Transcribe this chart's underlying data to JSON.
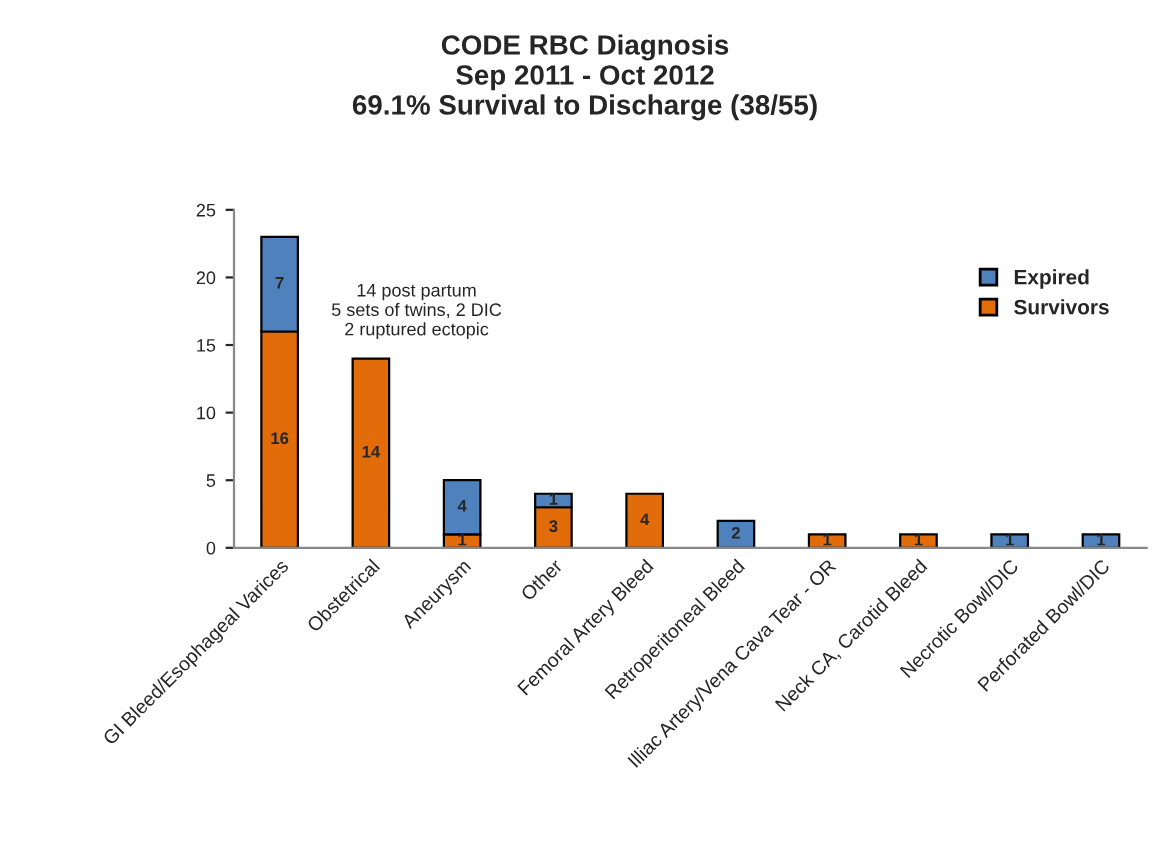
{
  "chart_data": {
    "type": "bar",
    "title": "CODE RBC Diagnosis\nSep 2011 - Oct 2012\n69.1% Survival to Discharge (38/55)",
    "categories": [
      "GI Bleed/Esophageal Varices",
      "Obstetrical",
      "Aneurysm",
      "Other",
      "Femoral Artery Bleed",
      "Retroperitoneal Bleed",
      "Illiac Artery/Vena Cava Tear - OR",
      "Neck CA, Carotid Bleed",
      "Necrotic Bowl/DIC",
      "Perforated Bowl/DIC"
    ],
    "stacked": true,
    "series": [
      {
        "name": "Survivors",
        "color": "#e36c0a",
        "values": [
          16,
          14,
          1,
          3,
          4,
          0,
          1,
          1,
          0,
          0
        ],
        "value_labels": [
          "16",
          "14",
          "1",
          "3",
          "4",
          null,
          "1",
          "1",
          null,
          null
        ]
      },
      {
        "name": "Expired",
        "color": "#4f81bd",
        "values": [
          7,
          0,
          4,
          1,
          0,
          2,
          0,
          0,
          1,
          1
        ],
        "value_labels": [
          "7",
          null,
          "4",
          "1",
          null,
          "2",
          null,
          null,
          "1",
          "1"
        ]
      }
    ],
    "ylim": [
      0,
      25
    ],
    "yticks": [
      0,
      5,
      10,
      15,
      20,
      25
    ],
    "grid": false,
    "legend": "top right",
    "annotations": [
      "14 post partum\n5 sets of twins, 2 DIC\n2 ruptured ectopic"
    ]
  }
}
